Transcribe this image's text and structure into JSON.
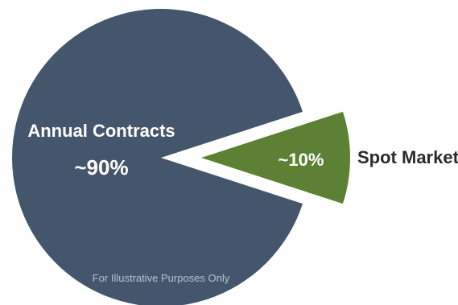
{
  "chart_data": {
    "type": "pie",
    "slices": [
      {
        "label": "Annual Contracts",
        "value": 90,
        "value_label": "~90%",
        "color": "#44566b",
        "exploded": false
      },
      {
        "label": "Spot Market",
        "value": 10,
        "value_label": "~10%",
        "color": "#5c8135",
        "exploded": true
      }
    ],
    "note": "For Illustrative Purposes Only",
    "colors": {
      "background": "#ffffff",
      "outside_label": "#2b2b2b",
      "note": "#b7c2cf"
    }
  }
}
